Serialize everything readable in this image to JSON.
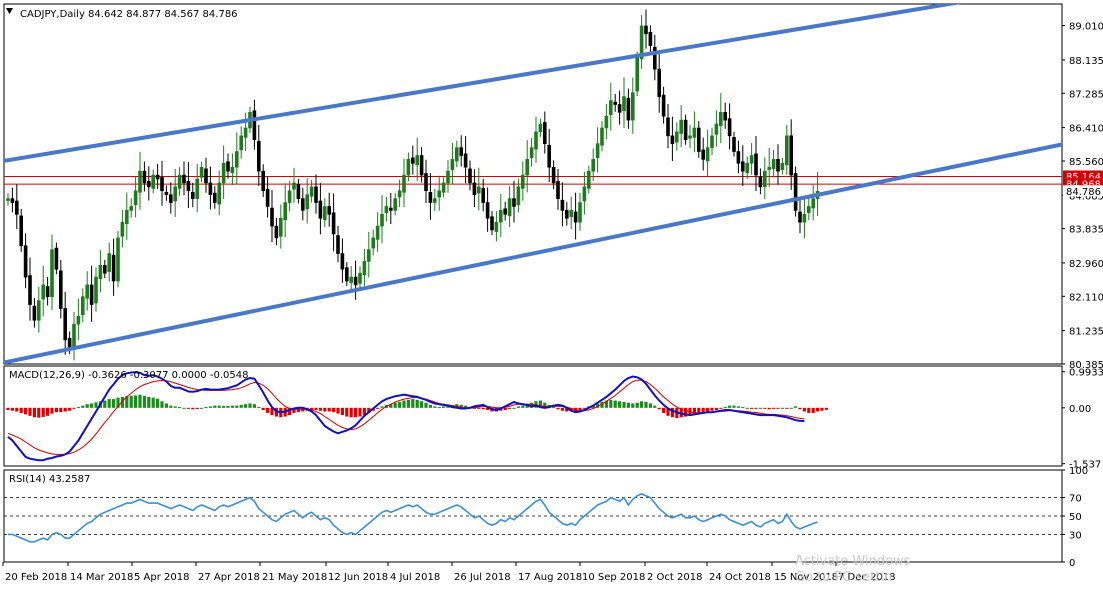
{
  "chart_data": {
    "type": "candlestick",
    "symbol_header": "CADJPY,Daily  84.642 84.877 84.567 84.786",
    "price_panel": {
      "y_ticks": [
        "89.010",
        "88.135",
        "87.285",
        "86.410",
        "85.560",
        "84.685",
        "83.835",
        "82.960",
        "82.110",
        "81.235",
        "80.385"
      ],
      "ylim": [
        80.385,
        89.56
      ],
      "last_price": "84.786",
      "horizontal_lines": [
        {
          "label": "85.164",
          "value": 85.164,
          "color": "#d40000"
        },
        {
          "label": "84.968",
          "value": 84.968,
          "color": "#d40000"
        }
      ],
      "trend_lines": [
        {
          "name": "upper-channel",
          "from": [
            -1,
            85.56
          ],
          "to": [
            216,
            89.6
          ],
          "color": "#4a78c8"
        },
        {
          "name": "lower-channel",
          "from": [
            -1,
            80.42
          ],
          "to": [
            246,
            86.13
          ],
          "color": "#4a78c8"
        }
      ],
      "closes": [
        84.6,
        84.5,
        84.2,
        83.4,
        82.6,
        81.9,
        81.5,
        82.0,
        82.4,
        82.1,
        83.3,
        82.8,
        81.8,
        81.0,
        80.8,
        81.4,
        81.6,
        82.1,
        82.4,
        81.9,
        82.6,
        82.9,
        82.7,
        83.2,
        82.5,
        83.6,
        84.0,
        84.3,
        84.4,
        84.8,
        85.3,
        85.0,
        84.9,
        85.2,
        85.1,
        84.8,
        84.7,
        84.5,
        84.9,
        85.2,
        85.0,
        84.8,
        84.6,
        85.1,
        85.4,
        85.0,
        84.7,
        84.5,
        85.0,
        85.5,
        85.3,
        85.4,
        85.8,
        86.2,
        86.4,
        86.8,
        86.1,
        85.3,
        84.8,
        84.4,
        83.9,
        83.6,
        84.1,
        84.5,
        84.8,
        85.0,
        84.6,
        84.3,
        84.7,
        84.9,
        84.5,
        84.1,
        84.4,
        84.2,
        83.7,
        83.2,
        82.8,
        82.5,
        82.6,
        82.4,
        82.7,
        83.0,
        83.3,
        83.6,
        83.9,
        84.2,
        84.4,
        84.3,
        84.6,
        84.8,
        85.2,
        85.6,
        85.5,
        85.7,
        85.2,
        84.8,
        84.5,
        84.6,
        84.8,
        85.0,
        85.3,
        85.6,
        85.9,
        85.7,
        85.4,
        85.0,
        84.7,
        84.9,
        84.5,
        84.1,
        83.8,
        84.0,
        84.3,
        84.2,
        84.6,
        84.4,
        84.9,
        85.2,
        85.6,
        85.9,
        86.3,
        86.5,
        86.0,
        85.4,
        85.0,
        84.6,
        84.3,
        84.1,
        84.3,
        84.0,
        84.5,
        84.9,
        85.3,
        85.6,
        86.0,
        86.4,
        86.7,
        87.1,
        87.0,
        86.8,
        87.2,
        86.6,
        87.3,
        88.2,
        89.0,
        88.8,
        88.5,
        87.9,
        87.2,
        86.7,
        86.2,
        86.0,
        86.3,
        86.6,
        86.1,
        86.2,
        86.4,
        85.8,
        85.6,
        85.9,
        86.2,
        86.5,
        86.8,
        86.6,
        86.2,
        85.8,
        85.5,
        85.3,
        85.5,
        85.7,
        85.2,
        84.9,
        85.3,
        85.4,
        85.6,
        85.3,
        85.5,
        86.2,
        85.2,
        84.3,
        84.0,
        84.2,
        84.4,
        84.6,
        84.786
      ],
      "last_bar_date": "7 Dec 2018"
    },
    "macd_panel": {
      "header": "MACD(12,26,9) -0.3626 -0.3077 0.0000 -0.0548",
      "y_ticks": [
        "0.9933",
        "0.00",
        "-1.537"
      ],
      "ylim": [
        -1.6,
        1.15
      ],
      "histogram": [
        -0.06,
        -0.08,
        -0.1,
        -0.14,
        -0.18,
        -0.22,
        -0.26,
        -0.27,
        -0.25,
        -0.22,
        -0.16,
        -0.12,
        -0.12,
        -0.1,
        -0.08,
        -0.02,
        0.02,
        0.06,
        0.1,
        0.12,
        0.15,
        0.18,
        0.2,
        0.24,
        0.24,
        0.28,
        0.3,
        0.32,
        0.33,
        0.34,
        0.36,
        0.33,
        0.3,
        0.28,
        0.25,
        0.18,
        0.12,
        0.06,
        0.04,
        0.02,
        0.0,
        -0.02,
        -0.04,
        -0.03,
        0.0,
        0.02,
        0.04,
        0.06,
        0.06,
        0.05,
        0.05,
        0.06,
        0.06,
        0.08,
        0.1,
        0.12,
        0.1,
        0.02,
        -0.06,
        -0.14,
        -0.2,
        -0.24,
        -0.26,
        -0.24,
        -0.2,
        -0.14,
        -0.12,
        -0.1,
        -0.08,
        -0.06,
        -0.06,
        -0.08,
        -0.1,
        -0.1,
        -0.12,
        -0.16,
        -0.2,
        -0.24,
        -0.26,
        -0.26,
        -0.24,
        -0.2,
        -0.14,
        -0.08,
        -0.02,
        0.04,
        0.08,
        0.1,
        0.14,
        0.16,
        0.2,
        0.22,
        0.24,
        0.22,
        0.18,
        0.14,
        0.08,
        0.04,
        0.02,
        0.04,
        0.06,
        0.08,
        0.1,
        0.08,
        0.06,
        0.02,
        -0.02,
        -0.02,
        -0.04,
        -0.06,
        -0.1,
        -0.1,
        -0.08,
        -0.06,
        -0.02,
        0.0,
        0.04,
        0.06,
        0.1,
        0.14,
        0.18,
        0.2,
        0.14,
        0.08,
        0.02,
        -0.04,
        -0.08,
        -0.1,
        -0.08,
        -0.1,
        -0.06,
        -0.02,
        0.04,
        0.08,
        0.12,
        0.16,
        0.2,
        0.22,
        0.2,
        0.18,
        0.16,
        0.14,
        0.12,
        0.14,
        0.18,
        0.16,
        0.12,
        0.06,
        -0.04,
        -0.14,
        -0.22,
        -0.26,
        -0.28,
        -0.26,
        -0.24,
        -0.22,
        -0.2,
        -0.16,
        -0.12,
        -0.1,
        -0.08,
        -0.06,
        -0.02,
        0.02,
        0.06,
        0.06,
        0.04,
        0.02,
        0.0,
        -0.02,
        -0.02,
        0.0,
        -0.02,
        -0.04,
        -0.02,
        -0.02,
        0.0,
        -0.02,
        0.0,
        0.04,
        -0.04,
        -0.1,
        -0.14,
        -0.14,
        -0.1,
        -0.08,
        -0.0548
      ],
      "macd": [
        -0.8,
        -0.9,
        -1.05,
        -1.2,
        -1.35,
        -1.4,
        -1.42,
        -1.44,
        -1.44,
        -1.4,
        -1.38,
        -1.34,
        -1.32,
        -1.28,
        -1.2,
        -1.05,
        -0.9,
        -0.7,
        -0.5,
        -0.3,
        -0.1,
        0.1,
        0.3,
        0.5,
        0.65,
        0.8,
        0.9,
        0.95,
        0.97,
        0.98,
        0.96,
        0.9,
        0.88,
        0.9,
        0.86,
        0.8,
        0.72,
        0.6,
        0.55,
        0.55,
        0.5,
        0.45,
        0.44,
        0.46,
        0.5,
        0.52,
        0.5,
        0.5,
        0.5,
        0.52,
        0.54,
        0.58,
        0.62,
        0.7,
        0.78,
        0.82,
        0.8,
        0.62,
        0.42,
        0.2,
        0.02,
        -0.1,
        -0.12,
        -0.1,
        -0.06,
        -0.02,
        0.0,
        0.0,
        -0.04,
        -0.1,
        -0.2,
        -0.35,
        -0.5,
        -0.58,
        -0.65,
        -0.7,
        -0.66,
        -0.62,
        -0.56,
        -0.48,
        -0.35,
        -0.22,
        -0.12,
        -0.02,
        0.08,
        0.18,
        0.24,
        0.28,
        0.32,
        0.34,
        0.36,
        0.34,
        0.32,
        0.3,
        0.26,
        0.22,
        0.16,
        0.12,
        0.1,
        0.08,
        0.06,
        0.02,
        0.0,
        -0.02,
        -0.02,
        0.0,
        0.04,
        0.06,
        0.08,
        0.02,
        -0.04,
        -0.06,
        -0.02,
        0.04,
        0.1,
        0.16,
        0.12,
        0.1,
        0.08,
        0.04,
        0.06,
        0.02,
        0.0,
        0.02,
        0.06,
        0.08,
        0.06,
        0.0,
        -0.08,
        -0.12,
        -0.1,
        -0.06,
        0.0,
        0.06,
        0.14,
        0.22,
        0.3,
        0.4,
        0.5,
        0.62,
        0.74,
        0.82,
        0.86,
        0.84,
        0.78,
        0.66,
        0.5,
        0.34,
        0.2,
        0.08,
        -0.02,
        -0.08,
        -0.12,
        -0.16,
        -0.18,
        -0.2,
        -0.18,
        -0.16,
        -0.14,
        -0.12,
        -0.12,
        -0.1,
        -0.08,
        -0.06,
        -0.06,
        -0.08,
        -0.1,
        -0.12,
        -0.14,
        -0.16,
        -0.18,
        -0.2,
        -0.2,
        -0.2,
        -0.2,
        -0.22,
        -0.24,
        -0.26,
        -0.3,
        -0.34,
        -0.36,
        -0.3626
      ],
      "signal": [
        -0.7,
        -0.75,
        -0.8,
        -0.86,
        -0.94,
        -1.02,
        -1.1,
        -1.16,
        -1.2,
        -1.24,
        -1.27,
        -1.28,
        -1.28,
        -1.28,
        -1.26,
        -1.22,
        -1.16,
        -1.08,
        -0.98,
        -0.86,
        -0.72,
        -0.56,
        -0.4,
        -0.26,
        -0.1,
        0.04,
        0.18,
        0.3,
        0.4,
        0.5,
        0.58,
        0.64,
        0.68,
        0.72,
        0.74,
        0.75,
        0.74,
        0.72,
        0.68,
        0.64,
        0.6,
        0.56,
        0.53,
        0.5,
        0.49,
        0.48,
        0.48,
        0.48,
        0.48,
        0.48,
        0.49,
        0.5,
        0.52,
        0.55,
        0.6,
        0.66,
        0.7,
        0.68,
        0.62,
        0.52,
        0.4,
        0.26,
        0.14,
        0.04,
        -0.02,
        -0.04,
        -0.04,
        -0.04,
        -0.04,
        -0.06,
        -0.1,
        -0.16,
        -0.24,
        -0.32,
        -0.4,
        -0.48,
        -0.54,
        -0.58,
        -0.6,
        -0.58,
        -0.52,
        -0.44,
        -0.34,
        -0.24,
        -0.14,
        -0.04,
        0.04,
        0.1,
        0.16,
        0.2,
        0.24,
        0.26,
        0.28,
        0.28,
        0.26,
        0.24,
        0.2,
        0.16,
        0.12,
        0.1,
        0.08,
        0.06,
        0.04,
        0.02,
        0.0,
        -0.01,
        0.0,
        0.02,
        0.04,
        0.04,
        0.02,
        0.0,
        0.0,
        0.02,
        0.04,
        0.08,
        0.1,
        0.1,
        0.1,
        0.1,
        0.08,
        0.06,
        0.04,
        0.04,
        0.04,
        0.04,
        0.04,
        0.02,
        -0.02,
        -0.06,
        -0.08,
        -0.08,
        -0.06,
        -0.02,
        0.04,
        0.1,
        0.18,
        0.26,
        0.34,
        0.44,
        0.54,
        0.64,
        0.72,
        0.76,
        0.76,
        0.72,
        0.64,
        0.54,
        0.42,
        0.3,
        0.2,
        0.1,
        0.02,
        -0.04,
        -0.08,
        -0.12,
        -0.14,
        -0.14,
        -0.14,
        -0.13,
        -0.12,
        -0.11,
        -0.1,
        -0.09,
        -0.08,
        -0.08,
        -0.08,
        -0.09,
        -0.1,
        -0.12,
        -0.13,
        -0.15,
        -0.17,
        -0.18,
        -0.18,
        -0.19,
        -0.2,
        -0.22,
        -0.24,
        -0.27,
        -0.29,
        -0.3077
      ]
    },
    "rsi_panel": {
      "header": "RSI(14) 43.2587",
      "y_ticks": [
        "100",
        "70",
        "50",
        "30",
        "0"
      ],
      "ylim": [
        0,
        100
      ],
      "levels": [
        70,
        50,
        30
      ],
      "values": [
        30,
        30,
        28,
        26,
        24,
        22,
        22,
        24,
        26,
        24,
        30,
        32,
        30,
        26,
        26,
        30,
        34,
        38,
        42,
        44,
        48,
        52,
        54,
        56,
        58,
        60,
        62,
        64,
        64,
        66,
        68,
        66,
        64,
        64,
        64,
        62,
        60,
        58,
        60,
        62,
        60,
        58,
        56,
        60,
        62,
        60,
        58,
        56,
        60,
        62,
        60,
        62,
        64,
        66,
        68,
        70,
        66,
        58,
        54,
        50,
        46,
        44,
        48,
        52,
        54,
        56,
        52,
        48,
        52,
        54,
        50,
        46,
        48,
        46,
        40,
        36,
        32,
        30,
        32,
        30,
        34,
        38,
        42,
        46,
        50,
        54,
        56,
        54,
        56,
        58,
        60,
        62,
        60,
        62,
        58,
        54,
        52,
        52,
        54,
        56,
        58,
        60,
        62,
        60,
        56,
        52,
        48,
        50,
        46,
        42,
        40,
        42,
        46,
        44,
        48,
        46,
        50,
        54,
        58,
        62,
        66,
        68,
        62,
        54,
        50,
        46,
        42,
        40,
        42,
        40,
        46,
        50,
        54,
        58,
        62,
        64,
        66,
        70,
        68,
        66,
        70,
        62,
        68,
        72,
        74,
        72,
        70,
        64,
        58,
        54,
        50,
        48,
        50,
        52,
        48,
        48,
        50,
        46,
        44,
        46,
        48,
        50,
        52,
        50,
        46,
        44,
        42,
        40,
        42,
        44,
        40,
        38,
        42,
        44,
        46,
        42,
        44,
        52,
        44,
        38,
        36,
        38,
        40,
        42,
        43.2587
      ]
    },
    "x_axis_labels": [
      "20 Feb 2018",
      "14 Mar 2018",
      "5 Apr 2018",
      "27 Apr 2018",
      "21 May 2018",
      "12 Jun 2018",
      "4 Jul 2018",
      "26 Jul 2018",
      "17 Aug 2018",
      "10 Sep 2018",
      "2 Oct 2018",
      "24 Oct 2018",
      "15 Nov 2018",
      "7 Dec 2018"
    ],
    "colors": {
      "bull": "#1f7a1f",
      "bear": "#000000",
      "macd_pos": "#1a8c1a",
      "macd_neg": "#e00000",
      "macd_line": "#1010c0",
      "signal_line": "#d40000",
      "rsi_line": "#3a8fd8",
      "trend_line": "#4a78c8"
    },
    "watermark": [
      "Activate Windows",
      "Go to PC settin"
    ]
  }
}
